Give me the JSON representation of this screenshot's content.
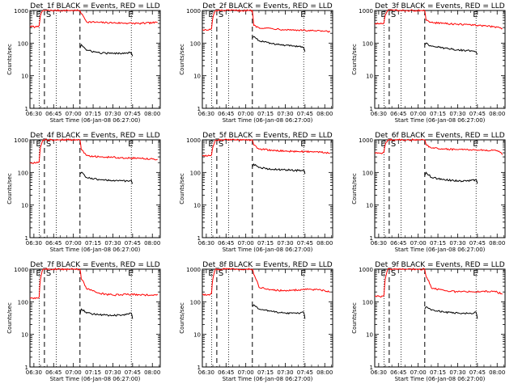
{
  "figure": {
    "xlabel": "Start Time (06-Jan-08 06:27:00)",
    "ylabel": "Counts/sec",
    "x_tick_labels": [
      "06:30",
      "06:45",
      "07:00",
      "07:15",
      "07:30",
      "07:45",
      "08:00"
    ],
    "y_tick_labels": [
      "1",
      "10",
      "100",
      "1000"
    ],
    "marker_labels": {
      "E": "E",
      "S": "S"
    },
    "colors": {
      "events": "#000000",
      "lld": "#ff0000",
      "axes": "#000000"
    }
  },
  "chart_data": [
    {
      "type": "line",
      "title": "Det_1f BLACK = Events, RED = LLD",
      "xlabel": "Start Time (06-Jan-08 06:27:00)",
      "ylabel": "Counts/sec",
      "ylim": [
        1,
        1000
      ],
      "yscale": "log",
      "xlim": [
        "06:27",
        "08:06"
      ],
      "markers": {
        "E_dotted": [
          "06:34",
          "07:44"
        ],
        "S_dashed": [
          "06:38",
          "07:05"
        ],
        "dotted": [
          "06:47"
        ]
      },
      "series": [
        {
          "name": "LLD",
          "color": "#ff0000",
          "x": [
            "06:27",
            "06:31",
            "06:33",
            "06:34",
            "06:35",
            "06:37",
            "06:37",
            "07:05",
            "07:06",
            "07:10",
            "07:20",
            "07:30",
            "07:40",
            "07:50",
            "08:00",
            "08:04"
          ],
          "values": [
            330,
            310,
            330,
            350,
            700,
            1000,
            1000,
            1000,
            800,
            450,
            430,
            420,
            410,
            400,
            420,
            430
          ]
        },
        {
          "name": "Events",
          "color": "#000000",
          "x": [
            "07:05",
            "07:06",
            "07:10",
            "07:20",
            "07:30",
            "07:40",
            "07:44",
            "07:45"
          ],
          "values": [
            70,
            90,
            60,
            50,
            48,
            50,
            52,
            40
          ]
        }
      ]
    },
    {
      "type": "line",
      "title": "Det_2f BLACK = Events, RED = LLD",
      "xlabel": "Start Time (06-Jan-08 06:27:00)",
      "ylabel": "Counts/sec",
      "ylim": [
        1,
        1000
      ],
      "yscale": "log",
      "xlim": [
        "06:27",
        "08:06"
      ],
      "markers": {
        "E_dotted": [
          "06:34",
          "07:44"
        ],
        "S_dashed": [
          "06:38",
          "07:05"
        ],
        "dotted": [
          "06:47"
        ]
      },
      "series": [
        {
          "name": "LLD",
          "color": "#ff0000",
          "x": [
            "06:27",
            "06:31",
            "06:33",
            "06:34",
            "06:35",
            "06:37",
            "06:37",
            "07:05",
            "07:06",
            "07:10",
            "07:20",
            "07:30",
            "07:40",
            "07:50",
            "08:00",
            "08:04"
          ],
          "values": [
            260,
            250,
            260,
            280,
            600,
            1000,
            1000,
            1000,
            350,
            300,
            280,
            260,
            250,
            240,
            230,
            220
          ]
        },
        {
          "name": "Events",
          "color": "#000000",
          "x": [
            "07:05",
            "07:06",
            "07:10",
            "07:20",
            "07:30",
            "07:40",
            "07:44",
            "07:45"
          ],
          "values": [
            150,
            160,
            120,
            95,
            85,
            80,
            75,
            55
          ]
        }
      ]
    },
    {
      "type": "line",
      "title": "Det_3f BLACK = Events, RED = LLD",
      "xlabel": "Start Time (06-Jan-08 06:27:00)",
      "ylabel": "Counts/sec",
      "ylim": [
        1,
        1000
      ],
      "yscale": "log",
      "xlim": [
        "06:27",
        "08:06"
      ],
      "markers": {
        "E_dotted": [
          "06:34",
          "07:44"
        ],
        "S_dashed": [
          "06:38",
          "07:05"
        ],
        "dotted": [
          "06:47"
        ]
      },
      "series": [
        {
          "name": "LLD",
          "color": "#ff0000",
          "x": [
            "06:27",
            "06:31",
            "06:33",
            "06:34",
            "06:35",
            "06:37",
            "06:37",
            "07:05",
            "07:06",
            "07:10",
            "07:20",
            "07:30",
            "07:40",
            "07:50",
            "08:00",
            "08:04"
          ],
          "values": [
            400,
            390,
            400,
            420,
            700,
            1000,
            1000,
            1000,
            500,
            430,
            400,
            380,
            360,
            340,
            310,
            280
          ]
        },
        {
          "name": "Events",
          "color": "#000000",
          "x": [
            "07:05",
            "07:06",
            "07:10",
            "07:20",
            "07:30",
            "07:40",
            "07:44",
            "07:45"
          ],
          "values": [
            90,
            100,
            80,
            70,
            62,
            58,
            55,
            45
          ]
        }
      ]
    },
    {
      "type": "line",
      "title": "Det_4f BLACK = Events, RED = LLD",
      "xlabel": "Start Time (06-Jan-08 06:27:00)",
      "ylabel": "Counts/sec",
      "ylim": [
        1,
        1000
      ],
      "yscale": "log",
      "xlim": [
        "06:27",
        "08:06"
      ],
      "markers": {
        "E_dotted": [
          "06:34",
          "07:44"
        ],
        "S_dashed": [
          "06:38",
          "07:05"
        ],
        "dotted": [
          "06:47"
        ]
      },
      "series": [
        {
          "name": "LLD",
          "color": "#ff0000",
          "x": [
            "06:27",
            "06:31",
            "06:33",
            "06:34",
            "06:35",
            "06:37",
            "06:37",
            "07:05",
            "07:06",
            "07:10",
            "07:20",
            "07:30",
            "07:40",
            "07:50",
            "08:00",
            "08:04"
          ],
          "values": [
            200,
            195,
            200,
            210,
            600,
            1000,
            1000,
            1000,
            500,
            330,
            300,
            290,
            280,
            270,
            260,
            250
          ]
        },
        {
          "name": "Events",
          "color": "#000000",
          "x": [
            "07:05",
            "07:06",
            "07:10",
            "07:20",
            "07:30",
            "07:40",
            "07:44",
            "07:45"
          ],
          "values": [
            90,
            100,
            70,
            60,
            55,
            55,
            58,
            45
          ]
        }
      ]
    },
    {
      "type": "line",
      "title": "Det_5f BLACK = Events, RED = LLD",
      "xlabel": "Start Time (06-Jan-08 06:27:00)",
      "ylabel": "Counts/sec",
      "ylim": [
        1,
        1000
      ],
      "yscale": "log",
      "xlim": [
        "06:27",
        "08:06"
      ],
      "markers": {
        "E_dotted": [
          "06:34",
          "07:44"
        ],
        "S_dashed": [
          "06:38",
          "07:05"
        ],
        "dotted": [
          "06:47"
        ]
      },
      "series": [
        {
          "name": "LLD",
          "color": "#ff0000",
          "x": [
            "06:27",
            "06:31",
            "06:33",
            "06:34",
            "06:35",
            "06:37",
            "06:37",
            "07:05",
            "07:06",
            "07:10",
            "07:20",
            "07:30",
            "07:40",
            "07:50",
            "08:00",
            "08:04"
          ],
          "values": [
            330,
            320,
            330,
            350,
            600,
            1000,
            1000,
            1000,
            700,
            520,
            480,
            450,
            440,
            430,
            410,
            380
          ]
        },
        {
          "name": "Events",
          "color": "#000000",
          "x": [
            "07:05",
            "07:06",
            "07:10",
            "07:20",
            "07:30",
            "07:40",
            "07:44",
            "07:45"
          ],
          "values": [
            150,
            180,
            140,
            125,
            120,
            115,
            118,
            90
          ]
        }
      ]
    },
    {
      "type": "line",
      "title": "Det_6f BLACK = Events, RED = LLD",
      "xlabel": "Start Time (06-Jan-08 06:27:00)",
      "ylabel": "Counts/sec",
      "ylim": [
        1,
        1000
      ],
      "yscale": "log",
      "xlim": [
        "06:27",
        "08:06"
      ],
      "markers": {
        "E_dotted": [
          "06:34",
          "07:44"
        ],
        "S_dashed": [
          "06:38",
          "07:05"
        ],
        "dotted": [
          "06:47"
        ]
      },
      "series": [
        {
          "name": "LLD",
          "color": "#ff0000",
          "x": [
            "06:27",
            "06:31",
            "06:33",
            "06:34",
            "06:35",
            "06:37",
            "06:37",
            "07:05",
            "07:06",
            "07:10",
            "07:20",
            "07:30",
            "07:40",
            "07:50",
            "08:00",
            "08:04"
          ],
          "values": [
            400,
            390,
            400,
            420,
            700,
            1000,
            1000,
            1000,
            700,
            560,
            520,
            500,
            490,
            480,
            470,
            350
          ]
        },
        {
          "name": "Events",
          "color": "#000000",
          "x": [
            "07:05",
            "07:06",
            "07:10",
            "07:20",
            "07:30",
            "07:40",
            "07:44",
            "07:45"
          ],
          "values": [
            80,
            100,
            70,
            60,
            55,
            56,
            60,
            45
          ]
        }
      ]
    },
    {
      "type": "line",
      "title": "Det_7f BLACK = Events, RED = LLD",
      "xlabel": "Start Time (06-Jan-08 06:27:00)",
      "ylabel": "Counts/sec",
      "ylim": [
        1,
        1000
      ],
      "yscale": "log",
      "xlim": [
        "06:27",
        "08:06"
      ],
      "markers": {
        "E_dotted": [
          "06:34",
          "07:44"
        ],
        "S_dashed": [
          "06:38",
          "07:05"
        ],
        "dotted": [
          "06:47"
        ]
      },
      "series": [
        {
          "name": "LLD",
          "color": "#ff0000",
          "x": [
            "06:27",
            "06:31",
            "06:33",
            "06:34",
            "06:35",
            "06:37",
            "06:37",
            "07:05",
            "07:06",
            "07:10",
            "07:20",
            "07:30",
            "07:40",
            "07:50",
            "08:00",
            "08:04"
          ],
          "values": [
            130,
            125,
            130,
            140,
            500,
            1000,
            1000,
            1000,
            500,
            250,
            180,
            160,
            170,
            165,
            160,
            170
          ]
        },
        {
          "name": "Events",
          "color": "#000000",
          "x": [
            "07:05",
            "07:06",
            "07:10",
            "07:20",
            "07:30",
            "07:40",
            "07:44",
            "07:45"
          ],
          "values": [
            40,
            60,
            45,
            40,
            38,
            40,
            45,
            30
          ]
        }
      ]
    },
    {
      "type": "line",
      "title": "Det_8f BLACK = Events, RED = LLD",
      "xlabel": "Start Time (06-Jan-08 06:27:00)",
      "ylabel": "Counts/sec",
      "ylim": [
        1,
        1000
      ],
      "yscale": "log",
      "xlim": [
        "06:27",
        "08:06"
      ],
      "markers": {
        "E_dotted": [
          "06:34",
          "07:44"
        ],
        "S_dashed": [
          "06:38",
          "07:05"
        ],
        "dotted": [
          "06:47"
        ]
      },
      "series": [
        {
          "name": "LLD",
          "color": "#ff0000",
          "x": [
            "06:27",
            "06:31",
            "06:33",
            "06:34",
            "06:35",
            "06:37",
            "06:37",
            "07:05",
            "07:06",
            "07:10",
            "07:20",
            "07:30",
            "07:40",
            "07:50",
            "08:00",
            "08:04"
          ],
          "values": [
            170,
            165,
            170,
            180,
            500,
            1000,
            1000,
            1000,
            700,
            280,
            230,
            220,
            230,
            240,
            220,
            200
          ]
        },
        {
          "name": "Events",
          "color": "#000000",
          "x": [
            "07:05",
            "07:06",
            "07:10",
            "07:20",
            "07:30",
            "07:40",
            "07:44",
            "07:45"
          ],
          "values": [
            70,
            80,
            60,
            50,
            45,
            45,
            48,
            30
          ]
        }
      ]
    },
    {
      "type": "line",
      "title": "Det_9f BLACK = Events, RED = LLD",
      "xlabel": "Start Time (06-Jan-08 06:27:00)",
      "ylabel": "Counts/sec",
      "ylim": [
        1,
        1000
      ],
      "yscale": "log",
      "xlim": [
        "06:27",
        "08:06"
      ],
      "markers": {
        "E_dotted": [
          "06:34",
          "07:44"
        ],
        "S_dashed": [
          "06:38",
          "07:05"
        ],
        "dotted": [
          "06:47"
        ]
      },
      "series": [
        {
          "name": "LLD",
          "color": "#ff0000",
          "x": [
            "06:27",
            "06:31",
            "06:33",
            "06:34",
            "06:35",
            "06:37",
            "06:37",
            "07:05",
            "07:06",
            "07:10",
            "07:20",
            "07:30",
            "07:40",
            "07:50",
            "08:00",
            "08:04"
          ],
          "values": [
            150,
            145,
            150,
            160,
            500,
            1000,
            1000,
            1000,
            600,
            270,
            220,
            200,
            205,
            210,
            200,
            170
          ]
        },
        {
          "name": "Events",
          "color": "#000000",
          "x": [
            "07:05",
            "07:06",
            "07:10",
            "07:20",
            "07:30",
            "07:40",
            "07:44",
            "07:45"
          ],
          "values": [
            60,
            70,
            55,
            48,
            45,
            44,
            48,
            30
          ]
        }
      ]
    }
  ]
}
